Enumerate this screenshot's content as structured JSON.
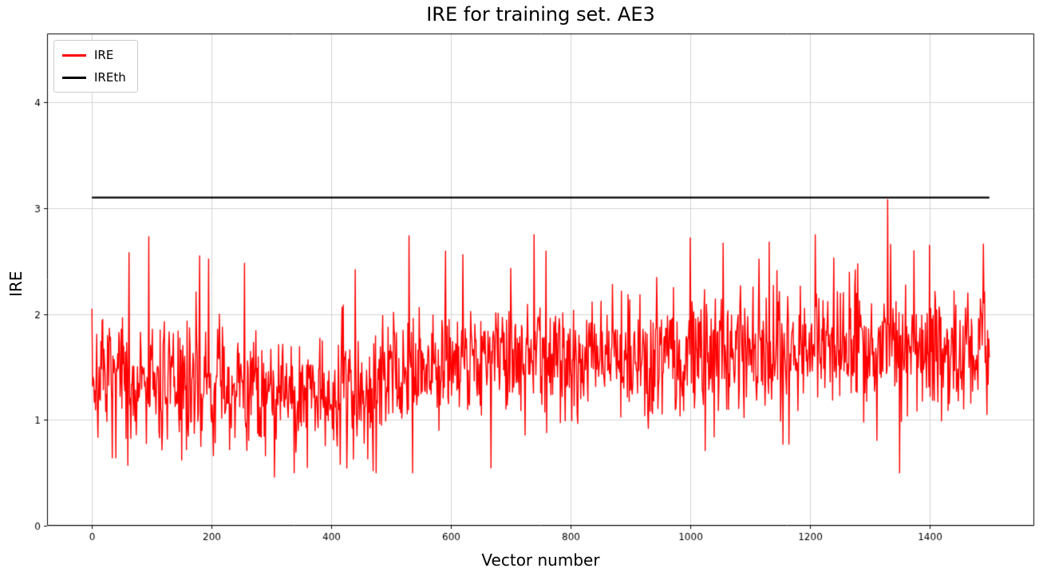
{
  "figure": {
    "title": "IRE for training set. AE3",
    "xlabel": "Vector number",
    "ylabel": "IRE"
  },
  "legend": {
    "entries": [
      {
        "label": "IRE",
        "color": "#ff0000"
      },
      {
        "label": "IREth",
        "color": "#000000"
      }
    ]
  },
  "chart_data": {
    "type": "line",
    "title": "IRE for training set. AE3",
    "xlabel": "Vector number",
    "ylabel": "IRE",
    "xlim": [
      -75,
      1575
    ],
    "ylim": [
      0,
      4.65
    ],
    "xticks": [
      0,
      200,
      400,
      600,
      800,
      1000,
      1200,
      1400
    ],
    "yticks": [
      0,
      1,
      2,
      3,
      4
    ],
    "grid": true,
    "grid_color": "#d3d3d3",
    "legend_position": "upper-left",
    "series": [
      {
        "name": "IRE",
        "color": "#ff0000",
        "type": "noisy-line",
        "x_range": [
          0,
          1500
        ],
        "n_points": 1501,
        "baseline": [
          {
            "x": 0,
            "mean": 1.38
          },
          {
            "x": 300,
            "mean": 1.28
          },
          {
            "x": 480,
            "mean": 1.32
          },
          {
            "x": 560,
            "mean": 1.58
          },
          {
            "x": 900,
            "mean": 1.6
          },
          {
            "x": 1200,
            "mean": 1.7
          },
          {
            "x": 1500,
            "mean": 1.66
          }
        ],
        "noise_std": 0.28,
        "value_min": 0.46,
        "value_max": 3.08,
        "seed": 7,
        "peaks": [
          {
            "x": 0,
            "y": 2.05
          },
          {
            "x": 95,
            "y": 2.73
          },
          {
            "x": 62,
            "y": 2.58
          },
          {
            "x": 180,
            "y": 2.55
          },
          {
            "x": 195,
            "y": 2.52
          },
          {
            "x": 255,
            "y": 2.48
          },
          {
            "x": 440,
            "y": 2.42
          },
          {
            "x": 530,
            "y": 2.74
          },
          {
            "x": 620,
            "y": 2.56
          },
          {
            "x": 700,
            "y": 2.43
          },
          {
            "x": 760,
            "y": 2.25
          },
          {
            "x": 870,
            "y": 2.28
          },
          {
            "x": 1000,
            "y": 2.72
          },
          {
            "x": 1055,
            "y": 2.67
          },
          {
            "x": 1115,
            "y": 2.52
          },
          {
            "x": 1240,
            "y": 2.53
          },
          {
            "x": 1330,
            "y": 3.08
          },
          {
            "x": 1400,
            "y": 2.65
          },
          {
            "x": 1490,
            "y": 2.66
          }
        ],
        "dips": [
          {
            "x": 40,
            "y": 0.64
          },
          {
            "x": 60,
            "y": 0.57
          },
          {
            "x": 150,
            "y": 0.62
          },
          {
            "x": 230,
            "y": 0.72
          },
          {
            "x": 305,
            "y": 0.46
          },
          {
            "x": 360,
            "y": 0.55
          },
          {
            "x": 415,
            "y": 0.58
          },
          {
            "x": 470,
            "y": 0.52
          },
          {
            "x": 760,
            "y": 0.88
          },
          {
            "x": 930,
            "y": 0.92
          },
          {
            "x": 1165,
            "y": 0.77
          },
          {
            "x": 1290,
            "y": 0.98
          }
        ]
      },
      {
        "name": "IREth",
        "color": "#000000",
        "type": "hline",
        "y": 3.1,
        "x_range": [
          0,
          1500
        ]
      }
    ]
  }
}
